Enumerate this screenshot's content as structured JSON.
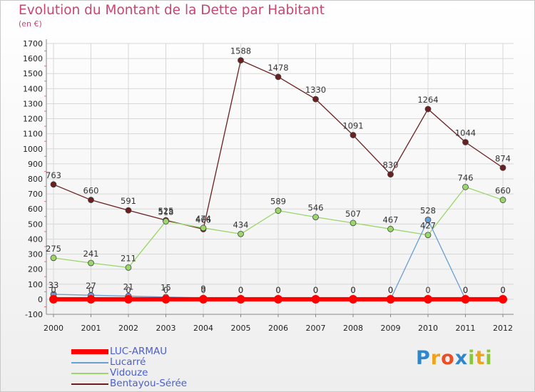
{
  "chart_data": {
    "type": "line",
    "title": "Evolution du Montant de la Dette par Habitant",
    "subtitle": "(en €)",
    "x": [
      "2000",
      "2001",
      "2002",
      "2003",
      "2004",
      "2005",
      "2006",
      "2007",
      "2008",
      "2009",
      "2010",
      "2011",
      "2012"
    ],
    "ylim": [
      -100,
      1700
    ],
    "yticks": [
      -100,
      0,
      100,
      200,
      300,
      400,
      500,
      600,
      700,
      800,
      900,
      1000,
      1100,
      1200,
      1300,
      1400,
      1500,
      1600,
      1700
    ],
    "grid": true,
    "legend_position": "bottom-left",
    "series": [
      {
        "name": "LUC-ARMAU",
        "color": "#ff0000",
        "values": [
          0,
          0,
          0,
          0,
          0,
          0,
          0,
          0,
          0,
          0,
          0,
          0,
          0
        ]
      },
      {
        "name": "Lucarré",
        "color": "#6a9fd4",
        "values": [
          33,
          27,
          21,
          15,
          9,
          0,
          0,
          0,
          0,
          0,
          528,
          0,
          0
        ]
      },
      {
        "name": "Vidouze",
        "color": "#9ad66b",
        "values": [
          275,
          241,
          211,
          518,
          474,
          434,
          589,
          546,
          507,
          467,
          427,
          746,
          660
        ]
      },
      {
        "name": "Bentayou-Sérée",
        "color": "#6b1f20",
        "values": [
          763,
          660,
          591,
          525,
          466,
          1588,
          1478,
          1330,
          1091,
          830,
          1264,
          1044,
          874
        ]
      }
    ]
  },
  "logo": {
    "letters": [
      "P",
      "r",
      "o",
      "x",
      "i",
      "t",
      "i"
    ],
    "colors": [
      "#2f86c9",
      "#f0a21c",
      "#e94e24",
      "#2f86c9",
      "#8cc63e",
      "#f0a21c",
      "#8cc63e"
    ]
  }
}
